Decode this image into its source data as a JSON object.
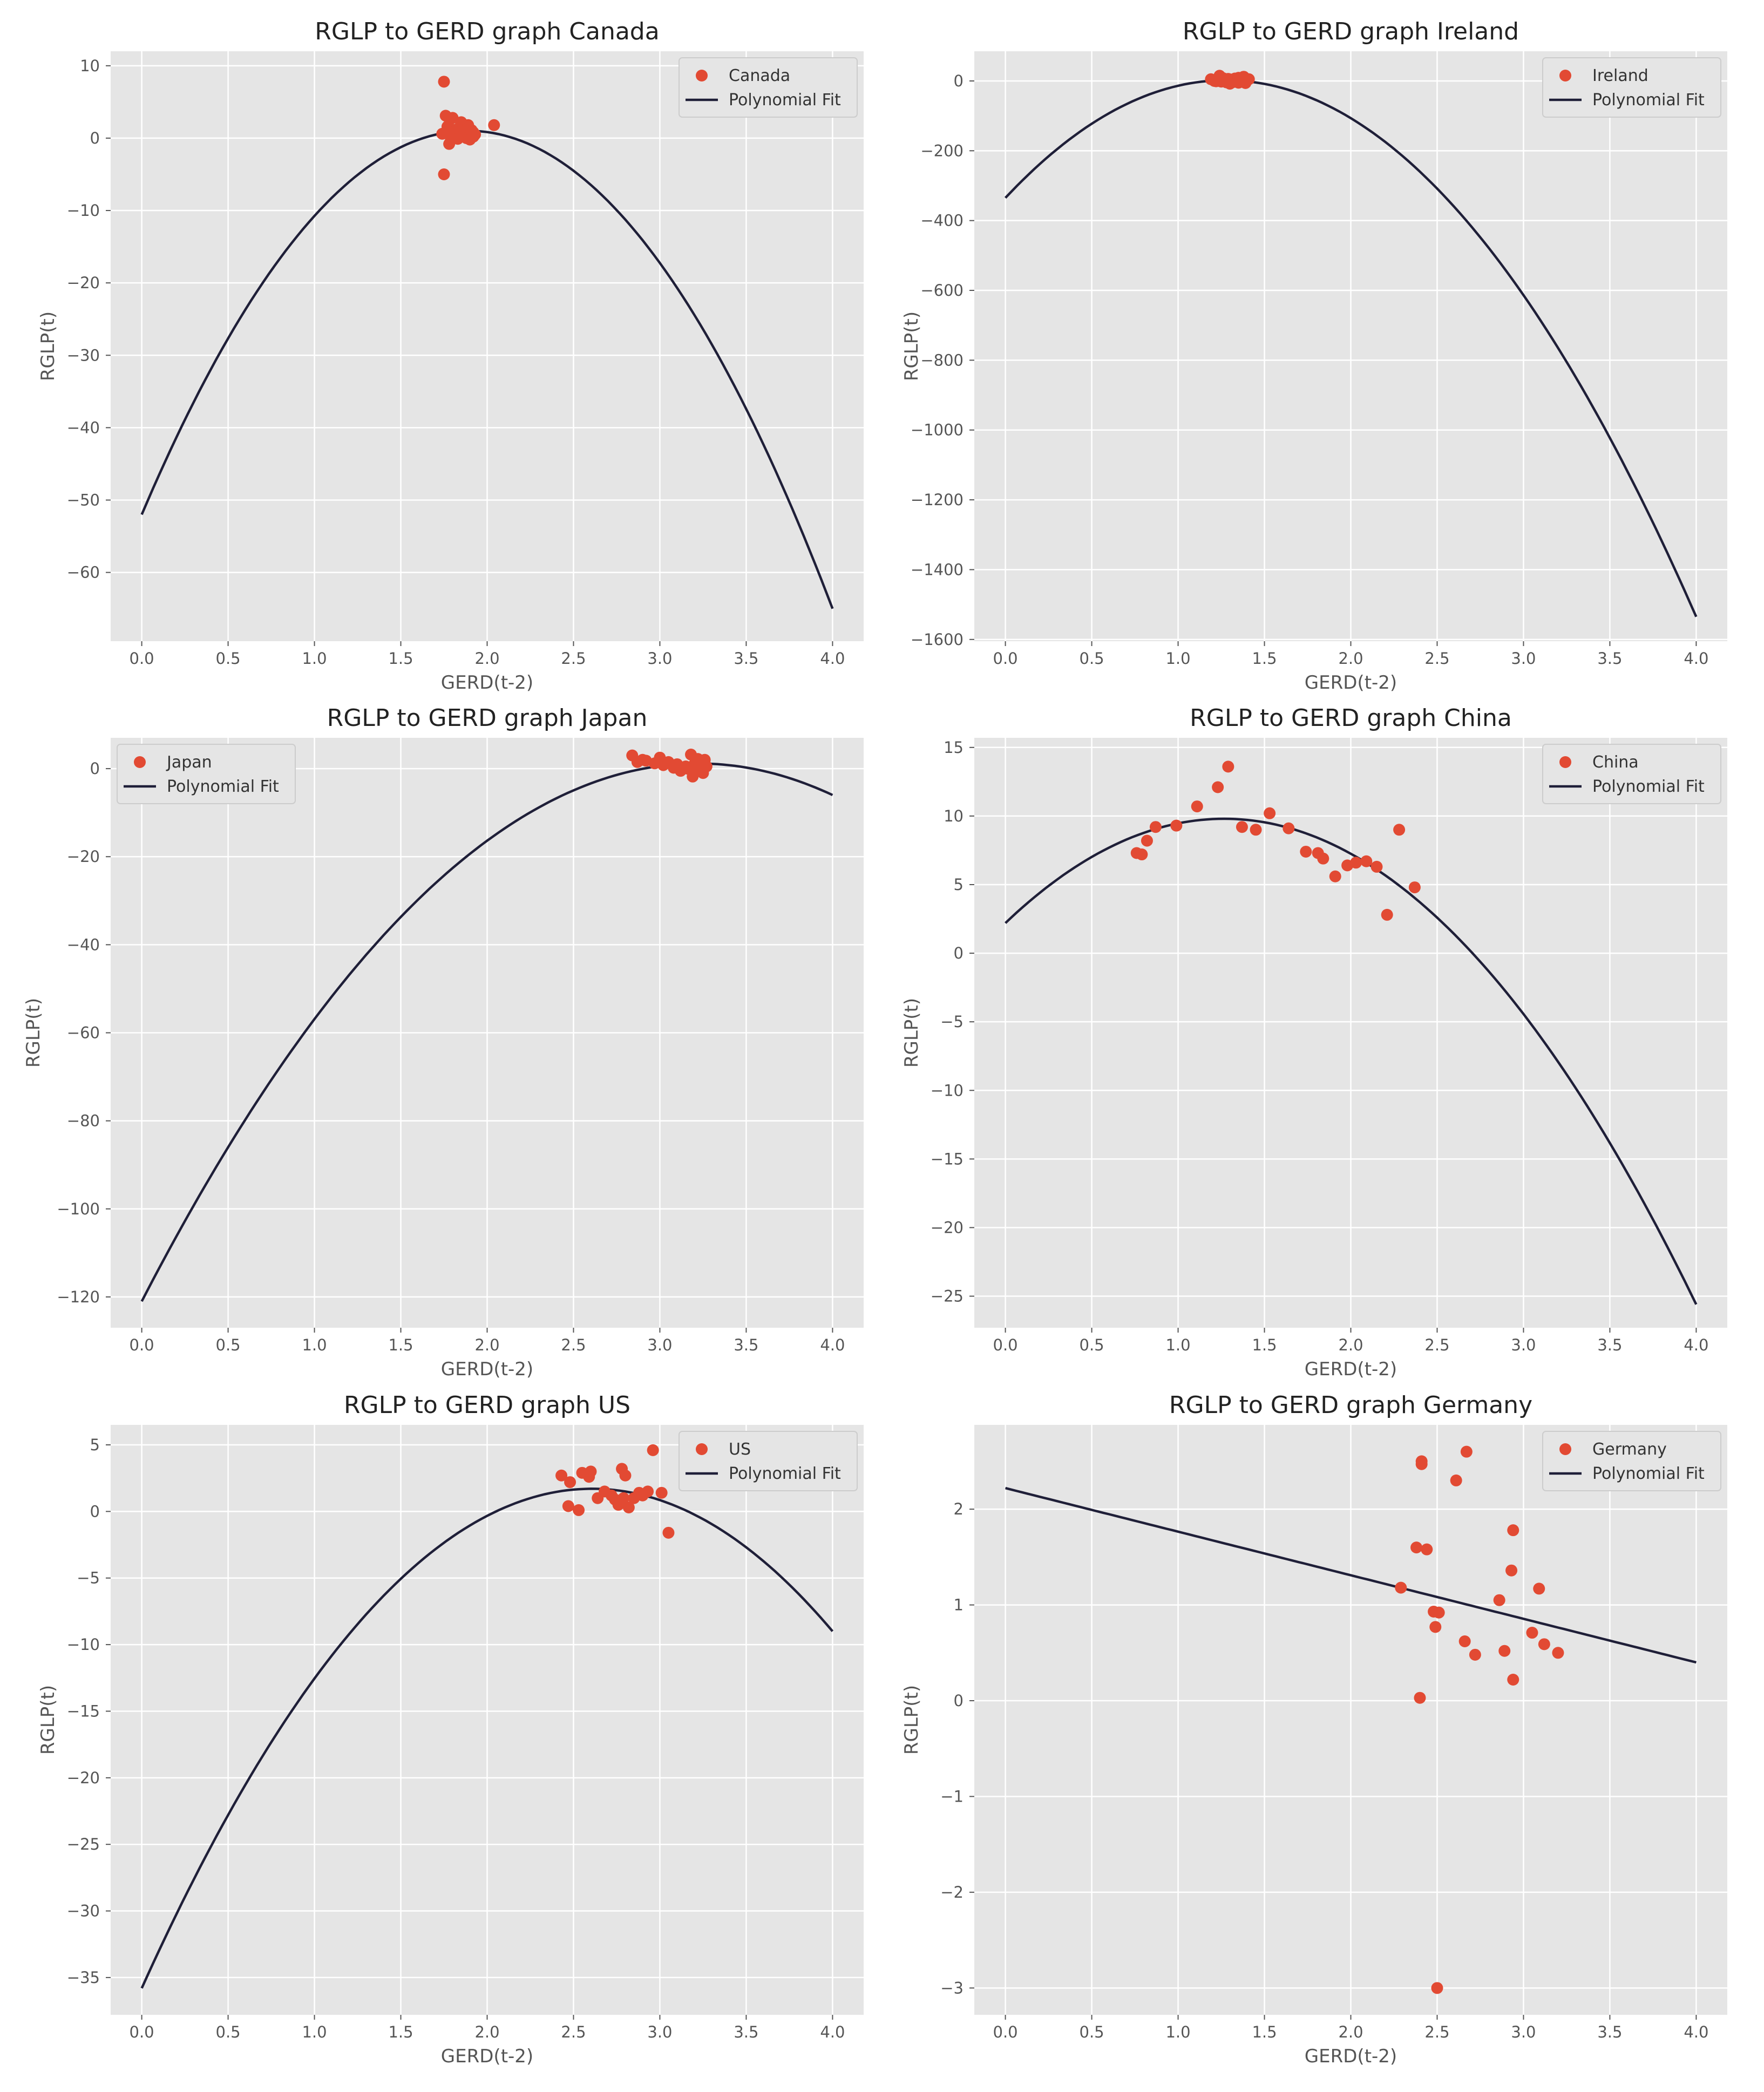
{
  "colors": {
    "panel_bg": "#e5e5e5",
    "grid": "#ffffff",
    "points": "#e24a33",
    "fit_line": "#1f1f38",
    "legend_bg": "#e5e5e5",
    "legend_border": "#cccccc"
  },
  "chart_data": [
    {
      "type": "scatter",
      "title": "RGLP to GERD graph Canada",
      "xlabel": "GERD(t-2)",
      "ylabel": "RGLP(t)",
      "xlim": [
        -0.18,
        4.18
      ],
      "ylim": [
        -69.5,
        12
      ],
      "xticks": [
        0,
        0.5,
        1,
        1.5,
        2,
        2.5,
        3,
        3.5,
        4
      ],
      "xtick_labels": [
        "0.0",
        "0.5",
        "1.0",
        "1.5",
        "2.0",
        "2.5",
        "3.0",
        "3.5",
        "4.0"
      ],
      "yticks": [
        10,
        0,
        -10,
        -20,
        -30,
        -40,
        -50,
        -60
      ],
      "ytick_labels": [
        "10",
        "0",
        "−10",
        "−20",
        "−30",
        "−40",
        "−50",
        "−60"
      ],
      "legend_position": "top-right",
      "series": [
        {
          "name": "Canada",
          "kind": "scatter",
          "x": [
            1.75,
            1.76,
            1.75,
            1.8,
            1.77,
            1.78,
            1.8,
            1.82,
            1.85,
            1.86,
            1.87,
            1.88,
            1.9,
            1.91,
            1.92,
            1.93,
            1.78,
            1.79,
            1.84,
            1.89,
            1.92,
            2.04,
            1.74,
            1.81,
            1.83
          ],
          "y": [
            7.8,
            3.1,
            -5.0,
            2.8,
            1.6,
            0.5,
            1.2,
            0.3,
            2.2,
            1.0,
            0.4,
            0.0,
            -0.2,
            1.1,
            0.8,
            0.5,
            -0.8,
            -0.3,
            1.5,
            1.8,
            0.2,
            1.8,
            0.6,
            0.9,
            -0.1
          ]
        },
        {
          "name": "Polynomial Fit",
          "kind": "line",
          "poly_x": [
            0,
            1.92,
            4
          ],
          "poly_y": [
            -52,
            1,
            -65
          ]
        }
      ]
    },
    {
      "type": "scatter",
      "title": "RGLP to GERD graph Ireland",
      "xlabel": "GERD(t-2)",
      "ylabel": "RGLP(t)",
      "xlim": [
        -0.18,
        4.18
      ],
      "ylim": [
        -1605,
        85
      ],
      "xticks": [
        0,
        0.5,
        1,
        1.5,
        2,
        2.5,
        3,
        3.5,
        4
      ],
      "xtick_labels": [
        "0.0",
        "0.5",
        "1.0",
        "1.5",
        "2.0",
        "2.5",
        "3.0",
        "3.5",
        "4.0"
      ],
      "yticks": [
        0,
        -200,
        -400,
        -600,
        -800,
        -1000,
        -1200,
        -1400,
        -1600
      ],
      "ytick_labels": [
        "0",
        "−200",
        "−400",
        "−600",
        "−800",
        "−1000",
        "−1200",
        "−1400",
        "−1600"
      ],
      "legend_position": "top-right",
      "series": [
        {
          "name": "Ireland",
          "kind": "scatter",
          "x": [
            1.19,
            1.21,
            1.23,
            1.24,
            1.25,
            1.26,
            1.27,
            1.28,
            1.29,
            1.3,
            1.31,
            1.32,
            1.33,
            1.34,
            1.35,
            1.36,
            1.37,
            1.38,
            1.39,
            1.4,
            1.41,
            1.25,
            1.3,
            1.35,
            1.22
          ],
          "y": [
            5,
            0,
            3,
            15,
            -2,
            8,
            2,
            -4,
            6,
            0,
            4,
            -3,
            7,
            1,
            -5,
            3,
            0,
            12,
            -6,
            2,
            5,
            10,
            -8,
            9,
            -1
          ]
        },
        {
          "name": "Polynomial Fit",
          "kind": "line",
          "poly_x": [
            0,
            1.28,
            4
          ],
          "poly_y": [
            -335,
            2,
            -1535
          ]
        }
      ]
    },
    {
      "type": "scatter",
      "title": "RGLP to GERD graph Japan",
      "xlabel": "GERD(t-2)",
      "ylabel": "RGLP(t)",
      "xlim": [
        -0.18,
        4.18
      ],
      "ylim": [
        -127,
        7
      ],
      "xticks": [
        0,
        0.5,
        1,
        1.5,
        2,
        2.5,
        3,
        3.5,
        4
      ],
      "xtick_labels": [
        "0.0",
        "0.5",
        "1.0",
        "1.5",
        "2.0",
        "2.5",
        "3.0",
        "3.5",
        "4.0"
      ],
      "yticks": [
        0,
        -20,
        -40,
        -60,
        -80,
        -100,
        -120
      ],
      "ytick_labels": [
        "0",
        "−20",
        "−40",
        "−60",
        "−80",
        "−100",
        "−120"
      ],
      "legend_position": "top-left",
      "series": [
        {
          "name": "Japan",
          "kind": "scatter",
          "x": [
            2.84,
            2.87,
            2.9,
            2.92,
            2.97,
            3.0,
            3.02,
            3.05,
            3.08,
            3.1,
            3.12,
            3.15,
            3.18,
            3.2,
            3.22,
            3.24,
            3.25,
            3.26,
            3.27,
            3.19,
            3.23,
            3.16,
            3.21,
            3.25
          ],
          "y": [
            3.0,
            1.5,
            2.0,
            1.8,
            1.2,
            2.5,
            0.8,
            1.5,
            0.2,
            1.0,
            -0.5,
            0.5,
            3.2,
            1.0,
            2.2,
            0.0,
            -1.0,
            2.0,
            0.5,
            -1.8,
            1.5,
            0.0,
            -0.3,
            1.2
          ]
        },
        {
          "name": "Polynomial Fit",
          "kind": "line",
          "poly_x": [
            0,
            3.1,
            4
          ],
          "poly_y": [
            -121,
            1,
            -6
          ]
        }
      ]
    },
    {
      "type": "scatter",
      "title": "RGLP to GERD graph China",
      "xlabel": "GERD(t-2)",
      "ylabel": "RGLP(t)",
      "xlim": [
        -0.18,
        4.18
      ],
      "ylim": [
        -27.3,
        15.7
      ],
      "xticks": [
        0,
        0.5,
        1,
        1.5,
        2,
        2.5,
        3,
        3.5,
        4
      ],
      "xtick_labels": [
        "0.0",
        "0.5",
        "1.0",
        "1.5",
        "2.0",
        "2.5",
        "3.0",
        "3.5",
        "4.0"
      ],
      "yticks": [
        15,
        10,
        5,
        0,
        -5,
        -10,
        -15,
        -20,
        -25
      ],
      "ytick_labels": [
        "15",
        "10",
        "5",
        "0",
        "−5",
        "−10",
        "−15",
        "−20",
        "−25"
      ],
      "legend_position": "top-right",
      "series": [
        {
          "name": "China",
          "kind": "scatter",
          "x": [
            0.76,
            0.79,
            0.82,
            0.87,
            0.99,
            1.11,
            1.23,
            1.29,
            1.37,
            1.45,
            1.53,
            1.64,
            1.74,
            1.81,
            1.84,
            1.91,
            1.98,
            2.03,
            2.09,
            2.15,
            2.21,
            2.28,
            2.37
          ],
          "y": [
            7.3,
            7.2,
            8.2,
            9.2,
            9.3,
            10.7,
            12.1,
            13.6,
            9.2,
            9.0,
            10.2,
            9.1,
            7.4,
            7.3,
            6.9,
            5.6,
            6.4,
            6.6,
            6.7,
            6.3,
            2.8,
            9.0,
            4.8
          ]
        },
        {
          "name": "Polynomial Fit",
          "kind": "line",
          "poly_x": [
            0,
            1.27,
            4
          ],
          "poly_y": [
            2.2,
            9.8,
            -25.6
          ]
        }
      ]
    },
    {
      "type": "scatter",
      "title": "RGLP to GERD graph US",
      "xlabel": "GERD(t-2)",
      "ylabel": "RGLP(t)",
      "xlim": [
        -0.18,
        4.18
      ],
      "ylim": [
        -37.8,
        6.5
      ],
      "xticks": [
        0,
        0.5,
        1,
        1.5,
        2,
        2.5,
        3,
        3.5,
        4
      ],
      "xtick_labels": [
        "0.0",
        "0.5",
        "1.0",
        "1.5",
        "2.0",
        "2.5",
        "3.0",
        "3.5",
        "4.0"
      ],
      "yticks": [
        5,
        0,
        -5,
        -10,
        -15,
        -20,
        -25,
        -30,
        -35
      ],
      "ytick_labels": [
        "5",
        "0",
        "−5",
        "−10",
        "−15",
        "−20",
        "−25",
        "−30",
        "−35"
      ],
      "legend_position": "top-right",
      "series": [
        {
          "name": "US",
          "kind": "scatter",
          "x": [
            2.43,
            2.47,
            2.48,
            2.53,
            2.55,
            2.59,
            2.6,
            2.64,
            2.68,
            2.72,
            2.74,
            2.76,
            2.78,
            2.79,
            2.8,
            2.82,
            2.85,
            2.88,
            2.9,
            2.93,
            2.96,
            3.01,
            3.05,
            2.77
          ],
          "y": [
            2.7,
            0.4,
            2.2,
            0.1,
            2.9,
            2.6,
            3.0,
            1.0,
            1.5,
            1.2,
            0.9,
            0.5,
            3.2,
            1.0,
            2.7,
            0.3,
            1.0,
            1.4,
            1.2,
            1.5,
            4.6,
            1.4,
            -1.6,
            0.8
          ]
        },
        {
          "name": "Polynomial Fit",
          "kind": "line",
          "poly_x": [
            0,
            2.58,
            4
          ],
          "poly_y": [
            -35.8,
            1.7,
            -9
          ]
        }
      ]
    },
    {
      "type": "scatter",
      "title": "RGLP to GERD graph Germany",
      "xlabel": "GERD(t-2)",
      "ylabel": "RGLP(t)",
      "xlim": [
        -0.18,
        4.18
      ],
      "ylim": [
        -3.28,
        2.88
      ],
      "xticks": [
        0,
        0.5,
        1,
        1.5,
        2,
        2.5,
        3,
        3.5,
        4
      ],
      "xtick_labels": [
        "0.0",
        "0.5",
        "1.0",
        "1.5",
        "2.0",
        "2.5",
        "3.0",
        "3.5",
        "4.0"
      ],
      "yticks": [
        2,
        1,
        0,
        -1,
        -2,
        -3
      ],
      "ytick_labels": [
        "2",
        "1",
        "0",
        "−1",
        "−2",
        "−3"
      ],
      "legend_position": "top-right",
      "series": [
        {
          "name": "Germany",
          "kind": "scatter",
          "x": [
            2.29,
            2.38,
            2.4,
            2.41,
            2.41,
            2.44,
            2.48,
            2.49,
            2.5,
            2.51,
            2.61,
            2.66,
            2.67,
            2.72,
            2.86,
            2.89,
            2.93,
            2.94,
            2.94,
            3.05,
            3.09,
            3.12,
            3.2
          ],
          "y": [
            1.18,
            1.6,
            0.03,
            2.47,
            2.5,
            1.58,
            0.93,
            0.77,
            -3.0,
            0.92,
            2.3,
            0.62,
            2.6,
            0.48,
            1.05,
            0.52,
            1.36,
            0.22,
            1.78,
            0.71,
            1.17,
            0.59,
            0.5
          ]
        },
        {
          "name": "Polynomial Fit",
          "kind": "line",
          "poly_x": [
            0,
            2,
            4
          ],
          "poly_y": [
            2.22,
            1.31,
            0.4
          ]
        }
      ]
    }
  ]
}
